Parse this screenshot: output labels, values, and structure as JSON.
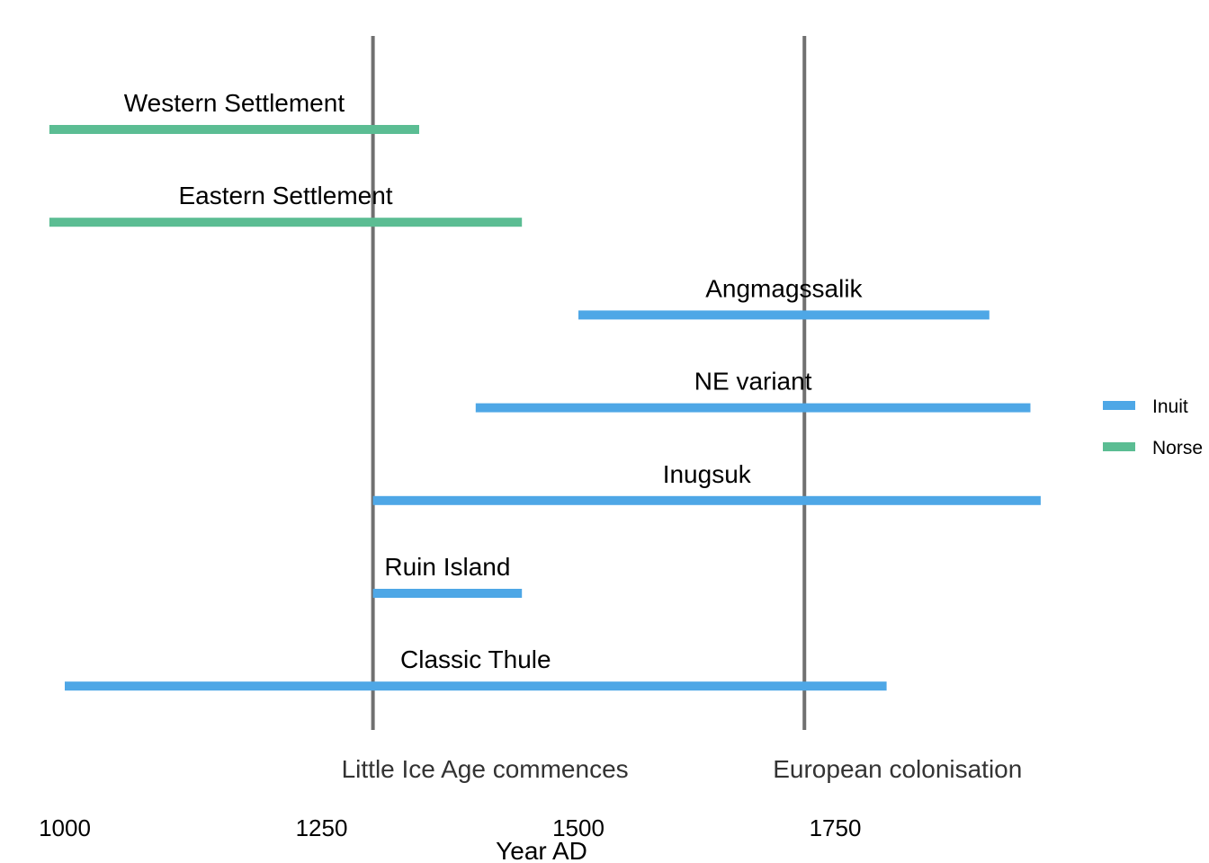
{
  "chart_data": {
    "type": "bar",
    "orientation": "horizontal-ranges",
    "xlabel": "Year AD",
    "xticks": [
      1000,
      1250,
      1500,
      1750
    ],
    "xlim": [
      985,
      1990
    ],
    "colors": {
      "Inuit": "#4ea7e6",
      "Norse": "#5bbd93",
      "reference_line": "#707070"
    },
    "series": [
      {
        "name": "Inuit"
      },
      {
        "name": "Norse"
      }
    ],
    "bars": [
      {
        "label": "Western Settlement",
        "group": "Norse",
        "start": 985,
        "end": 1345
      },
      {
        "label": "Eastern Settlement",
        "group": "Norse",
        "start": 985,
        "end": 1445
      },
      {
        "label": "Angmagssalik",
        "group": "Inuit",
        "start": 1500,
        "end": 1900
      },
      {
        "label": "NE variant",
        "group": "Inuit",
        "start": 1400,
        "end": 1940
      },
      {
        "label": "Inugsuk",
        "group": "Inuit",
        "start": 1300,
        "end": 1950
      },
      {
        "label": "Ruin Island",
        "group": "Inuit",
        "start": 1300,
        "end": 1445
      },
      {
        "label": "Classic Thule",
        "group": "Inuit",
        "start": 1000,
        "end": 1800
      }
    ],
    "reference_lines": [
      {
        "x": 1300,
        "label": "Little Ice Age commences"
      },
      {
        "x": 1720,
        "label": "European colonisation"
      }
    ],
    "legend": {
      "position": "right",
      "entries": [
        "Inuit",
        "Norse"
      ]
    },
    "grid": false
  }
}
